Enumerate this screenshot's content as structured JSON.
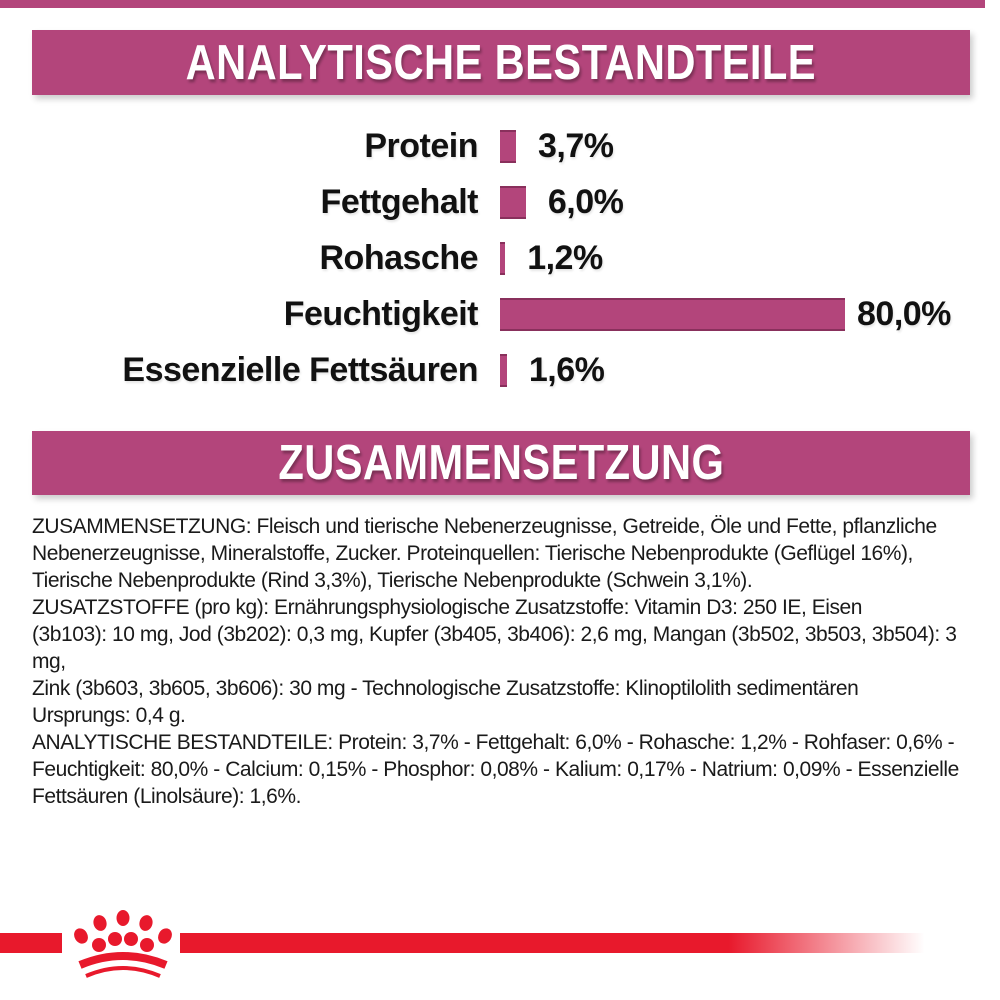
{
  "colors": {
    "magenta": "#b3457b",
    "red": "#e8192c",
    "text": "#1a1a1a"
  },
  "sections": {
    "analytical": {
      "title": "ANALYTISCHE BESTANDTEILE"
    },
    "composition": {
      "title": "ZUSAMMENSETZUNG"
    }
  },
  "chart_data": {
    "type": "bar",
    "orientation": "horizontal",
    "title": "ANALYTISCHE BESTANDTEILE",
    "categories": [
      "Protein",
      "Fettgehalt",
      "Rohasche",
      "Feuchtigkeit",
      "Essenzielle Fettsäuren"
    ],
    "values": [
      3.7,
      6.0,
      1.2,
      80.0,
      1.6
    ],
    "value_labels": [
      "3,7%",
      "6,0%",
      "1,2%",
      "80,0%",
      "1,6%"
    ],
    "unit": "%",
    "xlim": [
      0,
      80
    ],
    "grid": false,
    "legend": false,
    "bar_color": "#b3457b"
  },
  "composition_text": {
    "paragraphs": [
      {
        "lines": [
          "ZUSAMMENSETZUNG: Fleisch und tierische Nebenerzeugnisse, Getreide, Öle und Fette, pflanzliche",
          "Nebenerzeugnisse, Mineralstoffe, Zucker. Proteinquellen: Tierische Nebenprodukte (Geflügel 16%),",
          "Tierische Nebenprodukte (Rind 3,3%), Tierische Nebenprodukte (Schwein 3,1%)."
        ]
      },
      {
        "lines": [
          "ZUSATZSTOFFE (pro kg): Ernährungsphysiologische Zusatzstoffe: Vitamin D3: 250 IE, Eisen",
          "(3b103): 10 mg, Jod (3b202): 0,3 mg, Kupfer (3b405, 3b406): 2,6 mg, Mangan (3b502, 3b503, 3b504): 3 mg,",
          "Zink (3b603, 3b605, 3b606): 30 mg - Technologische Zusatzstoffe: Klinoptilolith sedimentären",
          "Ursprungs: 0,4 g."
        ]
      },
      {
        "lines": [
          "ANALYTISCHE BESTANDTEILE: Protein: 3,7% - Fettgehalt: 6,0% - Rohasche: 1,2% - Rohfaser: 0,6% -",
          "Feuchtigkeit: 80,0% - Calcium: 0,15% - Phosphor: 0,08% - Kalium: 0,17% - Natrium: 0,09% - Essenzielle",
          "Fettsäuren (Linolsäure): 1,6%."
        ]
      }
    ]
  },
  "footer": {
    "logo": "royal-canin-crown-logo"
  }
}
